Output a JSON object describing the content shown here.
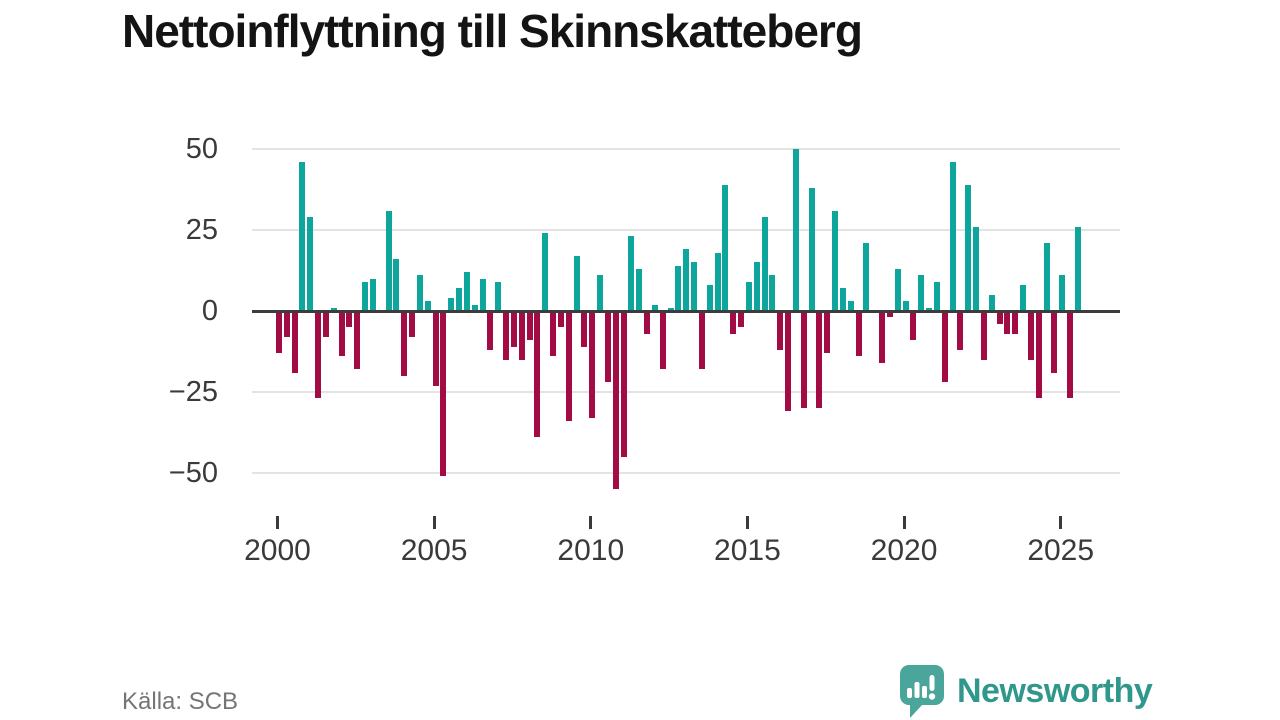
{
  "title": "Nettoinflyttning till Skinnskatteberg",
  "source": "Källa: SCB",
  "branding": {
    "name": "Newsworthy",
    "icon": "bar-chart-speech-bubble-icon"
  },
  "colors": {
    "positive_bar": "#0ea69c",
    "negative_bar": "#a30b45",
    "gridline": "#e3e3e3",
    "zero_line": "#3c3c3c",
    "title_text": "#141414",
    "axis_text": "#3a3a3a",
    "source_text": "#757575",
    "brand_teal": "#2f978b",
    "background": "#ffffff"
  },
  "chart_data": {
    "type": "bar",
    "title": "Nettoinflyttning till Skinnskatteberg",
    "frequency": "quarterly",
    "start_year": 2000,
    "start_quarter": 1,
    "values": [
      -13,
      -8,
      -19,
      46,
      29,
      -27,
      -8,
      1,
      -14,
      -5,
      -18,
      9,
      10,
      0,
      31,
      16,
      -20,
      -8,
      11,
      3,
      -23,
      -51,
      4,
      7,
      12,
      2,
      10,
      -12,
      9,
      -15,
      -11,
      -15,
      -9,
      -39,
      24,
      -14,
      -5,
      -34,
      17,
      -11,
      -33,
      11,
      -22,
      -55,
      -45,
      23,
      13,
      -7,
      2,
      -18,
      1,
      14,
      19,
      15,
      -18,
      8,
      18,
      39,
      -7,
      -5,
      9,
      15,
      29,
      11,
      -12,
      -31,
      50,
      -30,
      38,
      -30,
      -13,
      31,
      7,
      3,
      -14,
      21,
      0,
      -16,
      -2,
      13,
      3,
      -9,
      11,
      1,
      9,
      -22,
      46,
      -12,
      39,
      26,
      -15,
      5,
      -4,
      -7,
      -7,
      8,
      -15,
      -27,
      21,
      -19,
      11,
      -27,
      26
    ],
    "y_ticks": [
      50,
      25,
      0,
      -25,
      -50
    ],
    "y_tick_labels": [
      "50",
      "25",
      "0",
      "−25",
      "−50"
    ],
    "x_tick_years": [
      2000,
      2005,
      2010,
      2015,
      2020,
      2025
    ],
    "x_tick_labels": [
      "2000",
      "2005",
      "2010",
      "2015",
      "2020",
      "2025"
    ],
    "ylim": [
      -58,
      55
    ],
    "grid": "horizontal",
    "legend": "none",
    "positive_color": "#0ea69c",
    "negative_color": "#a30b45"
  }
}
